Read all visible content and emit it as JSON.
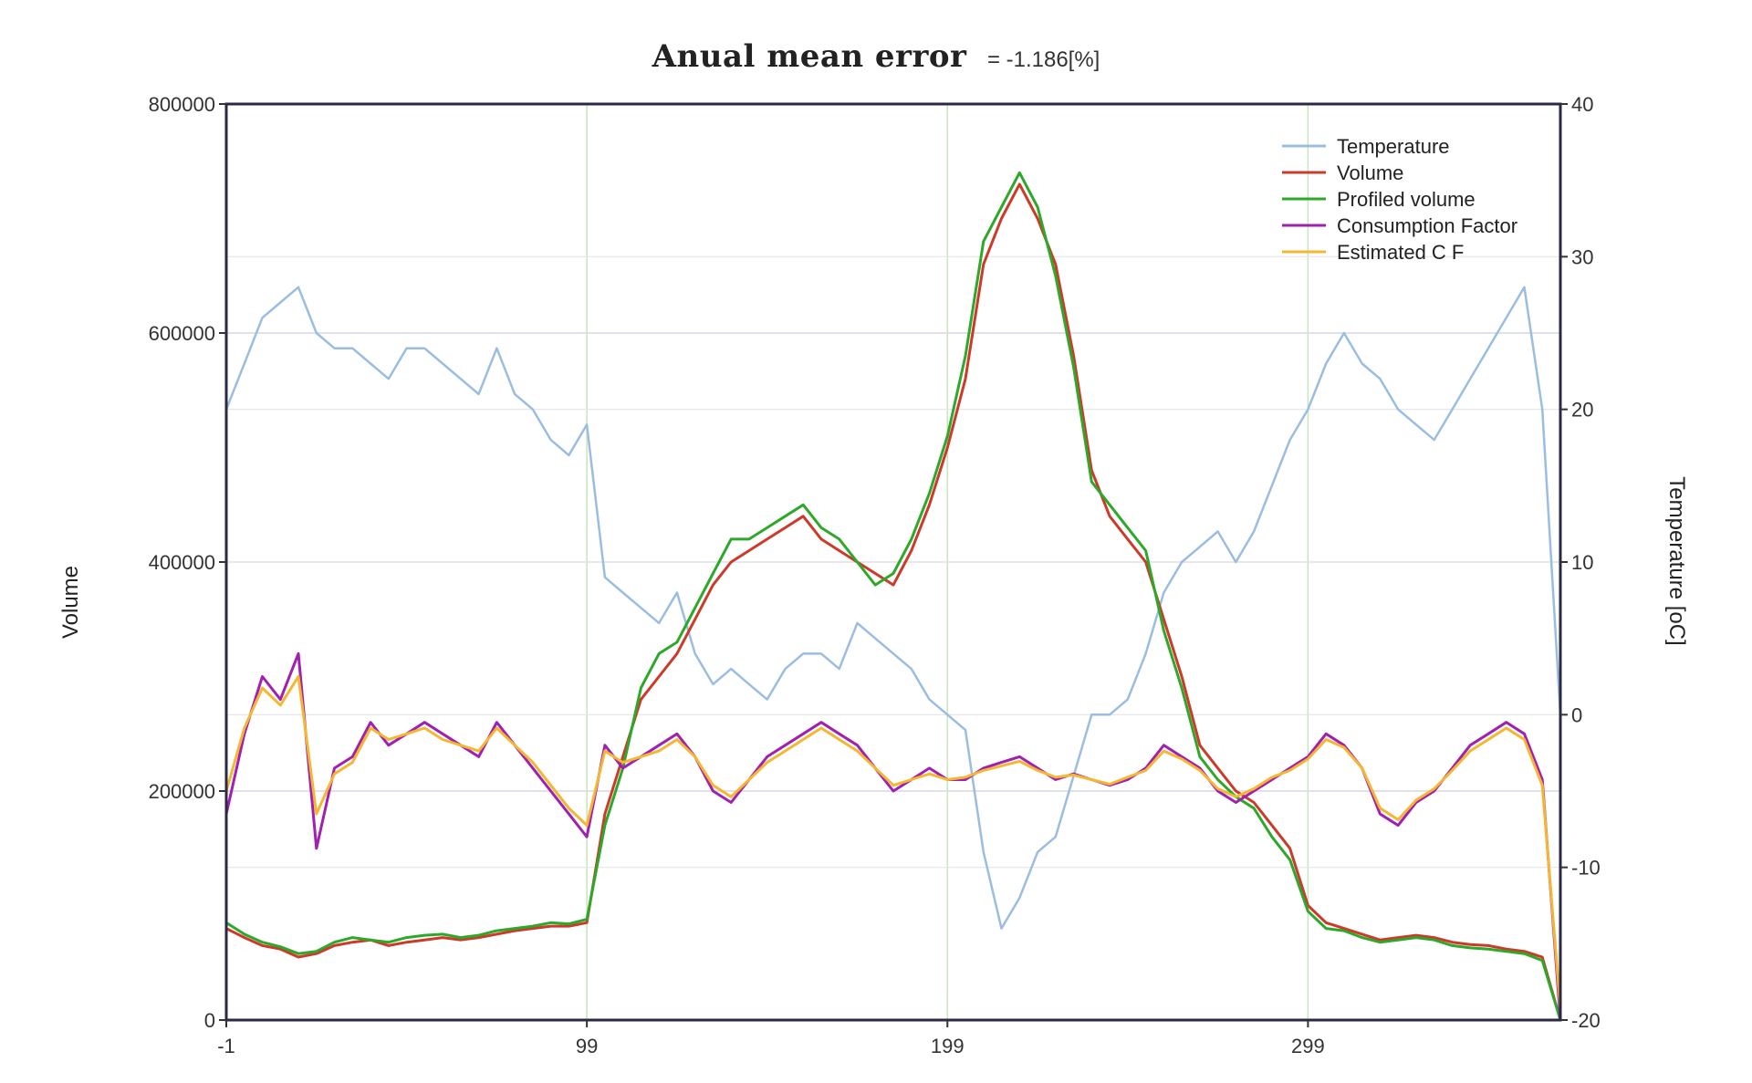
{
  "chart_data": {
    "type": "line",
    "title": "Anual mean error",
    "subtitle": "= -1.186[%]",
    "xlabel": "",
    "ylabel": "Volume",
    "ylabel_right": "Temperature [oC]",
    "xlim": [
      -1,
      369
    ],
    "ylim": [
      0,
      800000
    ],
    "ylim_right": [
      -20,
      40
    ],
    "x_ticks": [
      -1,
      99,
      199,
      299
    ],
    "y_ticks": [
      0,
      200000,
      400000,
      600000,
      800000
    ],
    "y_ticks_right": [
      -20,
      -10,
      0,
      10,
      20,
      30,
      40
    ],
    "grid": true,
    "legend_position": "top-right",
    "series": [
      {
        "name": "Temperature",
        "axis": "right",
        "color": "#9bbde0",
        "x": [
          -1,
          4,
          9,
          14,
          19,
          24,
          29,
          34,
          39,
          44,
          49,
          54,
          59,
          64,
          69,
          74,
          79,
          84,
          89,
          94,
          99,
          104,
          109,
          114,
          119,
          124,
          129,
          134,
          139,
          144,
          149,
          154,
          159,
          164,
          169,
          174,
          179,
          184,
          189,
          194,
          199,
          204,
          209,
          214,
          219,
          224,
          229,
          234,
          239,
          244,
          249,
          254,
          259,
          264,
          269,
          274,
          279,
          284,
          289,
          294,
          299,
          304,
          309,
          314,
          319,
          324,
          329,
          334,
          339,
          344,
          349,
          354,
          359,
          364,
          369
        ],
        "values": [
          20,
          23,
          26,
          27,
          28,
          25,
          24,
          24,
          23,
          22,
          24,
          24,
          23,
          22,
          21,
          24,
          21,
          20,
          18,
          17,
          19,
          9,
          8,
          7,
          6,
          8,
          4,
          2,
          3,
          2,
          1,
          3,
          4,
          4,
          3,
          6,
          5,
          4,
          3,
          1,
          0,
          -1,
          -9,
          -14,
          -12,
          -9,
          -8,
          -4,
          0,
          0,
          1,
          4,
          8,
          10,
          11,
          12,
          10,
          12,
          15,
          18,
          20,
          23,
          25,
          23,
          22,
          20,
          19,
          18,
          20,
          22,
          24,
          26,
          28,
          20,
          0
        ]
      },
      {
        "name": "Volume",
        "axis": "left",
        "color": "#cc3a2a",
        "x": [
          -1,
          4,
          9,
          14,
          19,
          24,
          29,
          34,
          39,
          44,
          49,
          54,
          59,
          64,
          69,
          74,
          79,
          84,
          89,
          94,
          99,
          104,
          109,
          114,
          119,
          124,
          129,
          134,
          139,
          144,
          149,
          154,
          159,
          164,
          169,
          174,
          179,
          184,
          189,
          194,
          199,
          204,
          209,
          214,
          219,
          224,
          229,
          234,
          239,
          244,
          249,
          254,
          259,
          264,
          269,
          274,
          279,
          284,
          289,
          294,
          299,
          304,
          309,
          314,
          319,
          324,
          329,
          334,
          339,
          344,
          349,
          354,
          359,
          364,
          369
        ],
        "values": [
          80000,
          72000,
          65000,
          62000,
          55000,
          58000,
          65000,
          68000,
          70000,
          65000,
          68000,
          70000,
          72000,
          70000,
          72000,
          75000,
          78000,
          80000,
          82000,
          82000,
          85000,
          180000,
          230000,
          280000,
          300000,
          320000,
          350000,
          380000,
          400000,
          410000,
          420000,
          430000,
          440000,
          420000,
          410000,
          400000,
          390000,
          380000,
          410000,
          450000,
          500000,
          560000,
          660000,
          700000,
          730000,
          700000,
          660000,
          580000,
          480000,
          440000,
          420000,
          400000,
          350000,
          300000,
          240000,
          220000,
          200000,
          190000,
          170000,
          150000,
          100000,
          85000,
          80000,
          75000,
          70000,
          72000,
          74000,
          72000,
          68000,
          66000,
          65000,
          62000,
          60000,
          55000,
          0
        ]
      },
      {
        "name": "Profiled volume",
        "axis": "left",
        "color": "#2ea82a",
        "x": [
          -1,
          4,
          9,
          14,
          19,
          24,
          29,
          34,
          39,
          44,
          49,
          54,
          59,
          64,
          69,
          74,
          79,
          84,
          89,
          94,
          99,
          104,
          109,
          114,
          119,
          124,
          129,
          134,
          139,
          144,
          149,
          154,
          159,
          164,
          169,
          174,
          179,
          184,
          189,
          194,
          199,
          204,
          209,
          214,
          219,
          224,
          229,
          234,
          239,
          244,
          249,
          254,
          259,
          264,
          269,
          274,
          279,
          284,
          289,
          294,
          299,
          304,
          309,
          314,
          319,
          324,
          329,
          334,
          339,
          344,
          349,
          354,
          359,
          364,
          369
        ],
        "values": [
          85000,
          75000,
          68000,
          64000,
          58000,
          60000,
          68000,
          72000,
          70000,
          68000,
          72000,
          74000,
          75000,
          72000,
          74000,
          78000,
          80000,
          82000,
          85000,
          84000,
          88000,
          170000,
          220000,
          290000,
          320000,
          330000,
          360000,
          390000,
          420000,
          420000,
          430000,
          440000,
          450000,
          430000,
          420000,
          400000,
          380000,
          390000,
          420000,
          460000,
          510000,
          580000,
          680000,
          710000,
          740000,
          710000,
          650000,
          570000,
          470000,
          450000,
          430000,
          410000,
          340000,
          290000,
          230000,
          210000,
          195000,
          185000,
          160000,
          140000,
          95000,
          80000,
          78000,
          72000,
          68000,
          70000,
          72000,
          70000,
          65000,
          63000,
          62000,
          60000,
          58000,
          52000,
          0
        ]
      },
      {
        "name": "Consumption Factor",
        "axis": "left",
        "color": "#a020b0",
        "x": [
          -1,
          4,
          9,
          14,
          19,
          24,
          29,
          34,
          39,
          44,
          49,
          54,
          59,
          64,
          69,
          74,
          79,
          84,
          89,
          94,
          99,
          104,
          109,
          114,
          119,
          124,
          129,
          134,
          139,
          144,
          149,
          154,
          159,
          164,
          169,
          174,
          179,
          184,
          189,
          194,
          199,
          204,
          209,
          214,
          219,
          224,
          229,
          234,
          239,
          244,
          249,
          254,
          259,
          264,
          269,
          274,
          279,
          284,
          289,
          294,
          299,
          304,
          309,
          314,
          319,
          324,
          329,
          334,
          339,
          344,
          349,
          354,
          359,
          364,
          369
        ],
        "values": [
          180000,
          250000,
          300000,
          280000,
          320000,
          150000,
          220000,
          230000,
          260000,
          240000,
          250000,
          260000,
          250000,
          240000,
          230000,
          260000,
          240000,
          220000,
          200000,
          180000,
          160000,
          240000,
          220000,
          230000,
          240000,
          250000,
          230000,
          200000,
          190000,
          210000,
          230000,
          240000,
          250000,
          260000,
          250000,
          240000,
          220000,
          200000,
          210000,
          220000,
          210000,
          210000,
          220000,
          225000,
          230000,
          220000,
          210000,
          215000,
          210000,
          205000,
          210000,
          220000,
          240000,
          230000,
          220000,
          200000,
          190000,
          200000,
          210000,
          220000,
          230000,
          250000,
          240000,
          220000,
          180000,
          170000,
          190000,
          200000,
          220000,
          240000,
          250000,
          260000,
          250000,
          210000,
          0
        ]
      },
      {
        "name": "Estimated C F",
        "axis": "left",
        "color": "#f5b731",
        "x": [
          -1,
          4,
          9,
          14,
          19,
          24,
          29,
          34,
          39,
          44,
          49,
          54,
          59,
          64,
          69,
          74,
          79,
          84,
          89,
          94,
          99,
          104,
          109,
          114,
          119,
          124,
          129,
          134,
          139,
          144,
          149,
          154,
          159,
          164,
          169,
          174,
          179,
          184,
          189,
          194,
          199,
          204,
          209,
          214,
          219,
          224,
          229,
          234,
          239,
          244,
          249,
          254,
          259,
          264,
          269,
          274,
          279,
          284,
          289,
          294,
          299,
          304,
          309,
          314,
          319,
          324,
          329,
          334,
          339,
          344,
          349,
          354,
          359,
          364,
          369
        ],
        "values": [
          200000,
          255000,
          290000,
          275000,
          300000,
          180000,
          215000,
          225000,
          255000,
          245000,
          250000,
          255000,
          245000,
          240000,
          235000,
          255000,
          240000,
          225000,
          205000,
          185000,
          170000,
          235000,
          225000,
          230000,
          235000,
          245000,
          230000,
          205000,
          195000,
          210000,
          225000,
          235000,
          245000,
          255000,
          245000,
          235000,
          220000,
          205000,
          210000,
          215000,
          210000,
          212000,
          218000,
          222000,
          226000,
          218000,
          212000,
          214000,
          210000,
          206000,
          212000,
          218000,
          235000,
          228000,
          218000,
          202000,
          195000,
          202000,
          212000,
          218000,
          228000,
          245000,
          238000,
          220000,
          185000,
          175000,
          192000,
          202000,
          218000,
          235000,
          245000,
          255000,
          245000,
          205000,
          10000
        ]
      }
    ]
  }
}
